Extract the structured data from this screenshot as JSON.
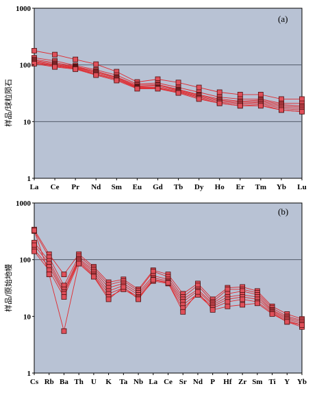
{
  "colors": {
    "plot_bg": "#b8c2d4",
    "line": "#e0282d",
    "marker_fill": "#e0505a",
    "marker_edge": "#4a0e0e",
    "grid": "#505a68"
  },
  "chart_data": [
    {
      "type": "line",
      "panel_label": "(a)",
      "ylabel": "样品/球粒陨石",
      "yscale": "log",
      "ylim": [
        1,
        1000
      ],
      "yticks": [
        "1",
        "10",
        "100",
        "1000"
      ],
      "grid": "horizontal at 10 and 100",
      "categories": [
        "La",
        "Ce",
        "Pr",
        "Nd",
        "Sm",
        "Eu",
        "Gd",
        "Tb",
        "Dy",
        "Ho",
        "Er",
        "Tm",
        "Yb",
        "Lu"
      ],
      "series": [
        {
          "values": [
            178,
            152,
            125,
            103,
            76,
            50,
            56,
            49,
            40,
            33,
            30,
            30,
            25,
            25
          ]
        },
        {
          "values": [
            134,
            118,
            98,
            82,
            66,
            46,
            48,
            40,
            33,
            27,
            25,
            25,
            21,
            21
          ]
        },
        {
          "values": [
            125,
            110,
            94,
            78,
            61,
            44,
            45,
            37,
            30,
            25,
            23,
            24,
            20,
            19
          ]
        },
        {
          "values": [
            120,
            105,
            92,
            75,
            60,
            42,
            44,
            36,
            29,
            24,
            22,
            23,
            19,
            18
          ]
        },
        {
          "values": [
            116,
            101,
            90,
            73,
            58,
            41,
            42,
            35,
            28,
            23,
            21,
            22,
            18,
            17
          ]
        },
        {
          "values": [
            112,
            98,
            88,
            70,
            56,
            40,
            40,
            34,
            27,
            22,
            20,
            21,
            17,
            16
          ]
        },
        {
          "values": [
            109,
            95,
            86,
            68,
            55,
            39,
            39,
            33,
            26,
            21,
            19,
            20,
            16,
            15
          ]
        },
        {
          "values": [
            105,
            92,
            84,
            66,
            53,
            38,
            38,
            32,
            25,
            21,
            19,
            19,
            16,
            15
          ]
        }
      ]
    },
    {
      "type": "line",
      "panel_label": "(b)",
      "ylabel": "样品/原始地幔",
      "yscale": "log",
      "ylim": [
        1,
        1000
      ],
      "yticks": [
        "1",
        "10",
        "100",
        "1000"
      ],
      "grid": "horizontal at 100",
      "categories": [
        "Cs",
        "Rb",
        "Ba",
        "Th",
        "U",
        "K",
        "Ta",
        "Nb",
        "La",
        "Ce",
        "Sr",
        "Nd",
        "P",
        "Hf",
        "Zr",
        "Sm",
        "Ti",
        "Y",
        "Yb"
      ],
      "series": [
        {
          "values": [
            340,
            125,
            55,
            125,
            75,
            40,
            45,
            30,
            65,
            55,
            25,
            38,
            20,
            32,
            33,
            28,
            15,
            11,
            9
          ]
        },
        {
          "values": [
            320,
            110,
            35,
            115,
            70,
            36,
            42,
            28,
            62,
            50,
            22,
            35,
            18,
            30,
            30,
            26,
            14,
            10,
            8.5
          ]
        },
        {
          "values": [
            200,
            95,
            30,
            105,
            65,
            32,
            38,
            26,
            52,
            45,
            20,
            30,
            17,
            25,
            28,
            24,
            13,
            9.5,
            8
          ]
        },
        {
          "values": [
            180,
            85,
            27,
            100,
            60,
            28,
            35,
            24,
            48,
            42,
            18,
            28,
            16,
            22,
            24,
            22,
            12.5,
            9,
            7.5
          ]
        },
        {
          "values": [
            150,
            75,
            25,
            95,
            55,
            25,
            32,
            22,
            45,
            40,
            16,
            25,
            15,
            20,
            22,
            20,
            12,
            8.5,
            7
          ]
        },
        {
          "values": [
            140,
            65,
            22,
            90,
            52,
            22,
            30,
            21,
            42,
            38,
            14,
            24,
            14,
            18,
            20,
            18,
            11.5,
            8,
            6.5
          ]
        },
        {
          "values": [
            330,
            55,
            5.5,
            85,
            50,
            20,
            33,
            20,
            44,
            39,
            12,
            27,
            13,
            15,
            16,
            17,
            11,
            8,
            7
          ]
        }
      ]
    }
  ]
}
